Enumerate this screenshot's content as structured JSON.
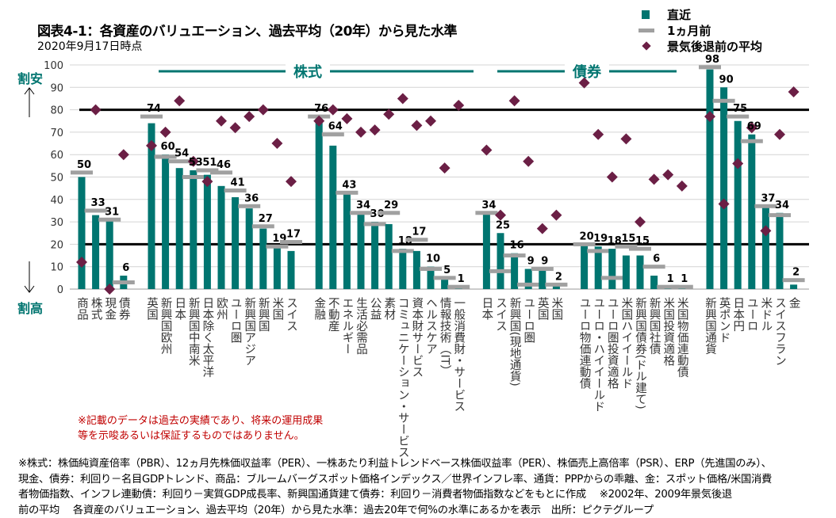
{
  "header": {
    "title": "図表4-1：各資産のバリュエーション、過去平均（20年）から見た水準",
    "subtitle": "2020年9月17日時点"
  },
  "legend": {
    "current": "直近",
    "prev": "1ヵ月前",
    "avg": "景気後退前の平均"
  },
  "axis_notes": {
    "cheap": "割安",
    "expensive": "割高"
  },
  "sections": {
    "stocks": "株式",
    "bonds": "債券"
  },
  "note": [
    "※記載のデータは過去の実績であり、将来の運用成果",
    "等を示唆あるいは保証するものではありません。"
  ],
  "footnote": [
    "※株式：株価純資産倍率（PBR）、12ヵ月先株価収益率（PER）、一株あたり利益トレンドベース株価収益率（PER）、株価売上高倍率（PSR）、ERP（先進国のみ）、",
    "現金、債券：利回り－名目GDPトレンド、商品：ブルームバーグスポット価格インデックス／世界インフレ率、通貨：PPPからの乖離、金：スポット価格/米国消費",
    "者物価指数、インフレ連動債：利回り－実質GDP成長率、新興国通貨建て債券：利回り－消費者物価指数などをもとに作成　 ※2002年、2009年景気後退",
    "前の平均　 各資産のバリュエーション、過去平均（20年）から見た水準：過去20年で何%の水準にあるかを表示　出所：ピクテグループ"
  ],
  "colors": {
    "current": "#007570",
    "prev": "#a0a0a0",
    "avg": "#6b1f45",
    "threshold": "#000000",
    "section": "#007570"
  },
  "chart_data": {
    "type": "bar",
    "title": "図表4-1：各資産のバリュエーション、過去平均（20年）から見た水準",
    "ylim": [
      0,
      100
    ],
    "yticks": [
      0,
      10,
      20,
      30,
      40,
      50,
      60,
      70,
      80,
      90,
      100
    ],
    "thresholds": [
      80,
      20
    ],
    "grid": true,
    "legend_position": "top-right",
    "series_names": [
      "直近",
      "1ヵ月前",
      "景気後退前の平均"
    ],
    "groups": [
      {
        "name": "asset",
        "items": [
          {
            "label": "商品",
            "value": 50,
            "prev": 52,
            "avg": 12
          },
          {
            "label": "株式",
            "value": 33,
            "prev": 35,
            "avg": 80
          },
          {
            "label": "現金",
            "value": 31,
            "prev": 31,
            "avg": 0
          },
          {
            "label": "債券",
            "value": 6,
            "prev": 3,
            "avg": 60
          }
        ]
      },
      {
        "name": "stocks-region",
        "items": [
          {
            "label": "英国",
            "value": 74,
            "prev": 77,
            "avg": 64
          },
          {
            "label": "新興国欧州",
            "value": 60,
            "prev": 59,
            "avg": 70
          },
          {
            "label": "日本",
            "value": 54,
            "prev": 57,
            "avg": 84
          },
          {
            "label": "新興国中南米",
            "value": 53,
            "prev": 50,
            "avg": 57
          },
          {
            "label": "日本除く太平洋",
            "value": 51,
            "prev": 53,
            "avg": 48
          },
          {
            "label": "欧州",
            "value": 46,
            "prev": 52,
            "avg": 75
          },
          {
            "label": "ユーロ圏",
            "value": 41,
            "prev": 44,
            "avg": 72
          },
          {
            "label": "新興国アジア",
            "value": 36,
            "prev": 37,
            "avg": 77
          },
          {
            "label": "新興国",
            "value": 27,
            "prev": 28,
            "avg": 80
          },
          {
            "label": "米国",
            "value": 19,
            "prev": 19,
            "avg": 65
          },
          {
            "label": "スイス",
            "value": 17,
            "prev": 21,
            "avg": 48
          }
        ]
      },
      {
        "name": "stocks-sector",
        "items": [
          {
            "label": "金融",
            "value": 76,
            "prev": 77,
            "avg": 75
          },
          {
            "label": "不動産",
            "value": 64,
            "prev": 69,
            "avg": 80
          },
          {
            "label": "エネルギー",
            "value": 43,
            "prev": 43,
            "avg": 76
          },
          {
            "label": "生活必需品",
            "value": 34,
            "prev": 34,
            "avg": 70
          },
          {
            "label": "公益",
            "value": 30,
            "prev": 29,
            "avg": 71
          },
          {
            "label": "素材",
            "value": 29,
            "prev": 34,
            "avg": 78
          },
          {
            "label": "コミュニケーション・サービス",
            "value": 18,
            "prev": 17,
            "avg": 85
          },
          {
            "label": "資本財サービス",
            "value": 17,
            "prev": 22,
            "avg": 73
          },
          {
            "label": "ヘルスケア",
            "value": 10,
            "prev": 9,
            "avg": 75
          },
          {
            "label": "情報技術（IT）",
            "value": 5,
            "prev": 5,
            "avg": 54
          },
          {
            "label": "一般消費財・サービス",
            "value": 1,
            "prev": 1,
            "avg": 82
          }
        ]
      },
      {
        "name": "bonds-gov",
        "items": [
          {
            "label": "日本",
            "value": 34,
            "prev": 34,
            "avg": 62
          },
          {
            "label": "スイス",
            "value": 25,
            "prev": 8,
            "avg": 33
          },
          {
            "label": "新興国(現地通貨)",
            "value": 16,
            "prev": 15,
            "avg": 84
          },
          {
            "label": "ユーロ圏",
            "value": 9,
            "prev": 2,
            "avg": 57
          },
          {
            "label": "英国",
            "value": 9,
            "prev": 9,
            "avg": 27
          },
          {
            "label": "米国",
            "value": 2,
            "prev": 2,
            "avg": 33
          }
        ]
      },
      {
        "name": "bonds-other",
        "items": [
          {
            "label": "ユーロ物価連動債",
            "value": 20,
            "prev": 20,
            "avg": 92
          },
          {
            "label": "ユーロ・ハイイールド",
            "value": 19,
            "prev": 17,
            "avg": 69
          },
          {
            "label": "ユーロ圏投資適格",
            "value": 18,
            "prev": 5,
            "avg": 50
          },
          {
            "label": "米国ハイイールド",
            "value": 15,
            "prev": 19,
            "avg": 67
          },
          {
            "label": "新興国債券(ドル建て)",
            "value": 15,
            "prev": 18,
            "avg": 30
          },
          {
            "label": "新興国社債",
            "value": 6,
            "prev": 10,
            "avg": 49
          },
          {
            "label": "米国投資適格",
            "value": 1,
            "prev": 1,
            "avg": 51
          },
          {
            "label": "米国物価連動債",
            "value": 1,
            "prev": 1,
            "avg": 46
          }
        ]
      },
      {
        "name": "currency",
        "items": [
          {
            "label": "新興国通貨",
            "value": 98,
            "prev": 99,
            "avg": 77
          },
          {
            "label": "英ポンド",
            "value": 90,
            "prev": 84,
            "avg": 38
          },
          {
            "label": "日本円",
            "value": 75,
            "prev": 77,
            "avg": 56
          },
          {
            "label": "ユーロ",
            "value": 69,
            "prev": 66,
            "avg": 72
          },
          {
            "label": "米ドル",
            "value": 37,
            "prev": 37,
            "avg": 26
          },
          {
            "label": "スイスフラン",
            "value": 34,
            "prev": 33,
            "avg": 69
          },
          {
            "label": "金",
            "value": 2,
            "prev": 4,
            "avg": 88
          }
        ]
      }
    ]
  }
}
